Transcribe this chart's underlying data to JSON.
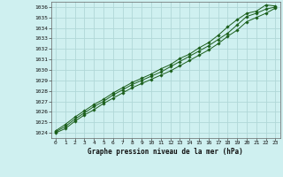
{
  "title": "Graphe pression niveau de la mer (hPa)",
  "background_color": "#cff0f0",
  "grid_color": "#b0d8d8",
  "line_color": "#1a5e1a",
  "marker_color": "#1a5e1a",
  "xlim": [
    -0.5,
    23.5
  ],
  "ylim": [
    1023.5,
    1036.5
  ],
  "yticks": [
    1024,
    1025,
    1026,
    1027,
    1028,
    1029,
    1030,
    1031,
    1032,
    1033,
    1034,
    1035,
    1036
  ],
  "xticks": [
    0,
    1,
    2,
    3,
    4,
    5,
    6,
    7,
    8,
    9,
    10,
    11,
    12,
    13,
    14,
    15,
    16,
    17,
    18,
    19,
    20,
    21,
    22,
    23
  ],
  "series": [
    [
      1024.0,
      1024.4,
      1025.1,
      1025.7,
      1026.2,
      1026.8,
      1027.3,
      1027.8,
      1028.3,
      1028.7,
      1029.1,
      1029.5,
      1029.9,
      1030.4,
      1030.9,
      1031.4,
      1031.9,
      1032.5,
      1033.2,
      1033.8,
      1034.6,
      1035.0,
      1035.4,
      1035.9
    ],
    [
      1024.1,
      1024.6,
      1025.3,
      1025.9,
      1026.5,
      1027.0,
      1027.6,
      1028.1,
      1028.6,
      1029.0,
      1029.4,
      1029.8,
      1030.3,
      1030.8,
      1031.3,
      1031.8,
      1032.3,
      1032.9,
      1033.5,
      1034.3,
      1035.1,
      1035.4,
      1035.8,
      1036.0
    ],
    [
      1024.2,
      1024.8,
      1025.5,
      1026.1,
      1026.7,
      1027.2,
      1027.8,
      1028.3,
      1028.8,
      1029.2,
      1029.6,
      1030.1,
      1030.5,
      1031.1,
      1031.5,
      1032.1,
      1032.6,
      1033.3,
      1034.1,
      1034.8,
      1035.4,
      1035.6,
      1036.2,
      1036.1
    ]
  ]
}
